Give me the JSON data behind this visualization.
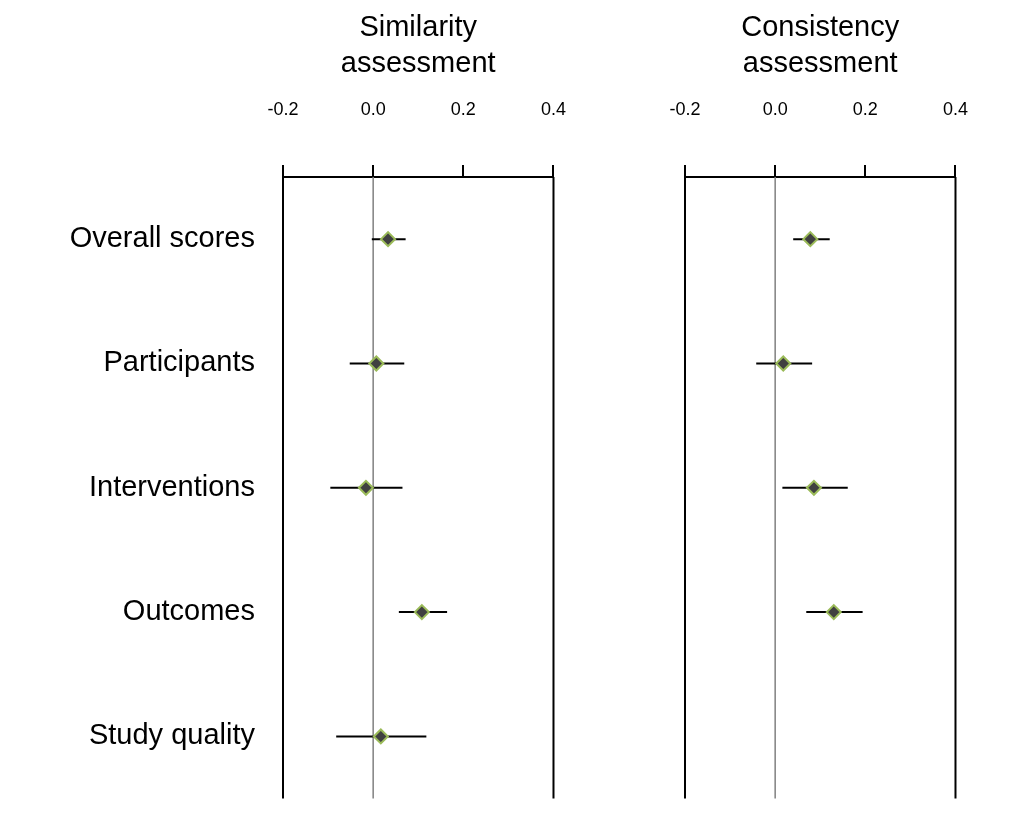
{
  "chart_data": [
    {
      "type": "scatter",
      "title": "Similarity assessment",
      "orientation": "horizontal",
      "categories": [
        "Overall scores",
        "Participants",
        "Interventions",
        "Outcomes",
        "Study quality"
      ],
      "values": [
        0.033,
        0.007,
        -0.016,
        0.108,
        0.017
      ],
      "errors": [
        [
          -0.003,
          0.072
        ],
        [
          -0.052,
          0.069
        ],
        [
          -0.095,
          0.065
        ],
        [
          0.057,
          0.164
        ],
        [
          -0.082,
          0.118
        ]
      ],
      "color": "#404040",
      "marker": "diamond",
      "xlim": [
        -0.2,
        0.4
      ],
      "xticks": [
        {
          "value": -0.2,
          "label": "-0.2"
        },
        {
          "value": 0,
          "label": "0.0"
        },
        {
          "value": 0.2,
          "label": "0.2"
        },
        {
          "value": 0.4,
          "label": "0.4"
        }
      ],
      "ref_lines": [
        {
          "axis": "x",
          "value": 0,
          "color": "#808080"
        }
      ]
    },
    {
      "type": "scatter",
      "title": "Consistency assessment",
      "orientation": "horizontal",
      "categories": [
        null,
        null,
        null,
        null,
        null
      ],
      "values": [
        0.078,
        0.018,
        0.086,
        0.13,
        null
      ],
      "errors": [
        [
          0.04,
          0.121
        ],
        [
          -0.042,
          0.082
        ],
        [
          0.016,
          0.161
        ],
        [
          0.069,
          0.194
        ],
        null
      ],
      "color": "#404040",
      "marker": "diamond",
      "xlim": [
        -0.2,
        0.4
      ],
      "xticks": [
        {
          "value": -0.2,
          "label": "-0.2"
        },
        {
          "value": 0,
          "label": "0.0"
        },
        {
          "value": 0.2,
          "label": "0.2"
        },
        {
          "value": 0.4,
          "label": "0.4"
        }
      ],
      "ref_lines": [
        {
          "axis": "x",
          "value": 0,
          "color": "#808080"
        }
      ]
    }
  ]
}
